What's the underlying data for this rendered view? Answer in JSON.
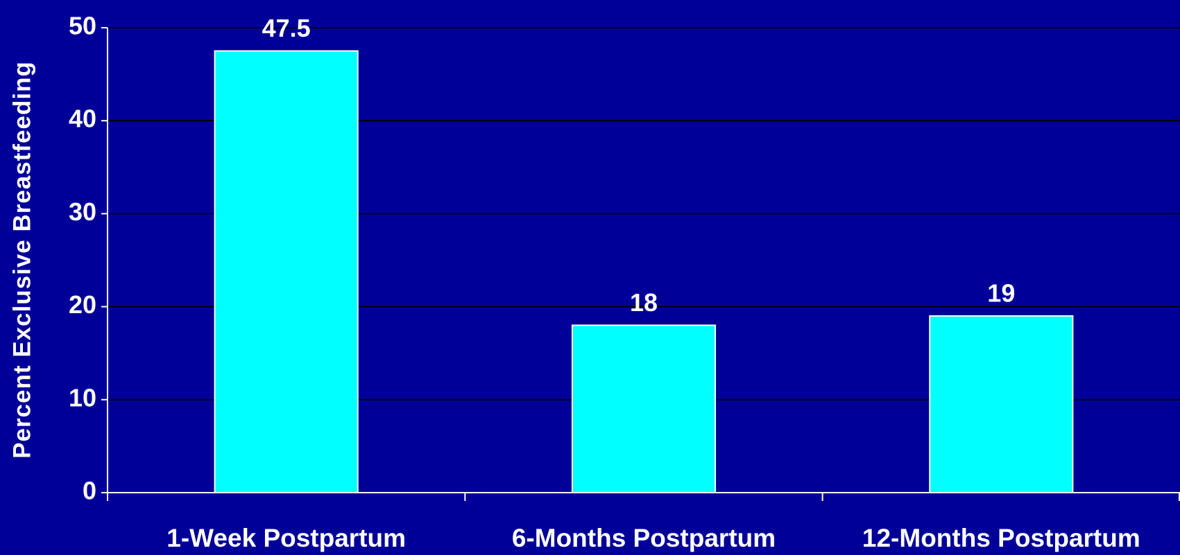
{
  "chart_data": {
    "type": "bar",
    "y_label": "Percent Exclusive Breastfeeding",
    "categories": [
      "1-Week Postpartum",
      "6-Months Postpartum",
      "12-Months Postpartum"
    ],
    "values": [
      47.5,
      18,
      19
    ],
    "color": "#00ffff",
    "ylim": [
      0,
      50
    ],
    "yticks": [
      0,
      10,
      20,
      30,
      40,
      50
    ],
    "grid": true,
    "data_labels": true
  }
}
